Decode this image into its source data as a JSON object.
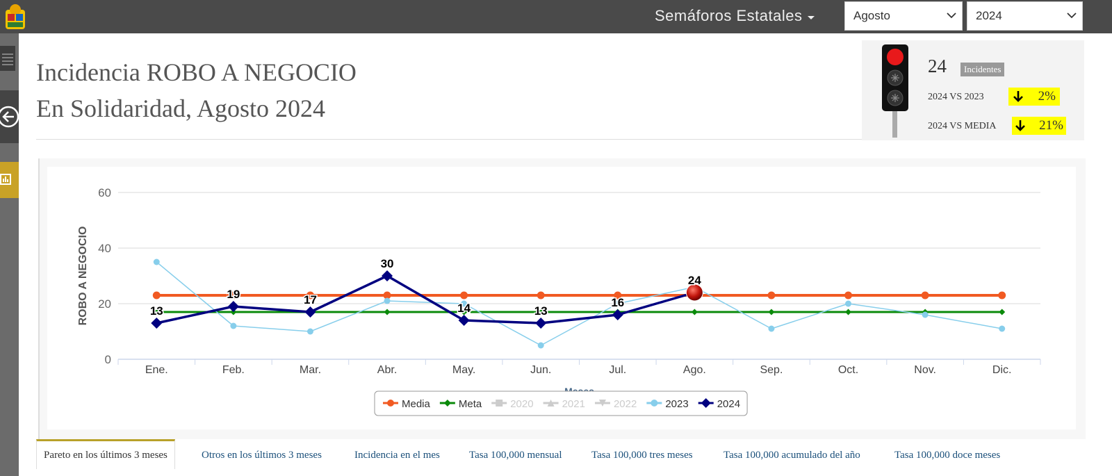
{
  "nav": {
    "title": "Semáforos Estatales",
    "month": "Agosto",
    "year": "2024"
  },
  "header": {
    "title": "Incidencia ROBO A NEGOCIO",
    "subtitle": "En Solidaridad, Agosto 2024"
  },
  "summary": {
    "count": "24",
    "count_label": "Incidentes",
    "comparisons": [
      {
        "label": "2024 VS 2023",
        "change": "2%"
      },
      {
        "label": "2024 VS MEDIA",
        "change": "21%"
      }
    ]
  },
  "chart_data": {
    "type": "line",
    "ylabel": "ROBO A NEGOCIO",
    "xlabel": "Meses",
    "categories": [
      "Ene.",
      "Feb.",
      "Mar.",
      "Abr.",
      "May.",
      "Jun.",
      "Jul.",
      "Ago.",
      "Sep.",
      "Oct.",
      "Nov.",
      "Dic."
    ],
    "ylim": [
      0,
      60
    ],
    "yticks": [
      0,
      20,
      40,
      60
    ],
    "grid": true,
    "highlight_category": "Ago.",
    "series": [
      {
        "name": "Media",
        "color": "#f15a22",
        "marker": "circle",
        "line_width": 4,
        "values": [
          23,
          23,
          23,
          23,
          23,
          23,
          23,
          23,
          23,
          23,
          23,
          23
        ]
      },
      {
        "name": "Meta",
        "color": "#0a8a0a",
        "marker": "diamond",
        "line_width": 3,
        "values": [
          17,
          17,
          17,
          17,
          17,
          17,
          17,
          17,
          17,
          17,
          17,
          17
        ]
      },
      {
        "name": "2020",
        "color": "#cccccc",
        "marker": "square",
        "visible": false,
        "values": [
          null,
          null,
          null,
          null,
          null,
          null,
          null,
          null,
          null,
          null,
          null,
          null
        ]
      },
      {
        "name": "2021",
        "color": "#cccccc",
        "marker": "triangle",
        "visible": false,
        "values": [
          null,
          null,
          null,
          null,
          null,
          null,
          null,
          null,
          null,
          null,
          null,
          null
        ]
      },
      {
        "name": "2022",
        "color": "#cccccc",
        "marker": "triangle-down",
        "visible": false,
        "values": [
          null,
          null,
          null,
          null,
          null,
          null,
          null,
          null,
          null,
          null,
          null,
          null
        ]
      },
      {
        "name": "2023",
        "color": "#87ceeb",
        "marker": "circle",
        "line_width": 1.5,
        "values": [
          35,
          12,
          10,
          21,
          20,
          5,
          20,
          26,
          11,
          20,
          16,
          11
        ]
      },
      {
        "name": "2024",
        "color": "#000080",
        "marker": "diamond",
        "line_width": 3.5,
        "data_labels": true,
        "values": [
          13,
          19,
          17,
          30,
          14,
          13,
          16,
          24,
          null,
          null,
          null,
          null
        ]
      }
    ]
  },
  "tabs": [
    "Pareto en los últimos 3 meses",
    "Otros en los últimos 3 meses",
    "Incidencia en el mes",
    "Tasa 100,000 mensual",
    "Tasa 100,000 tres meses",
    "Tasa 100,000 acumulado del año",
    "Tasa 100,000 doce meses"
  ]
}
